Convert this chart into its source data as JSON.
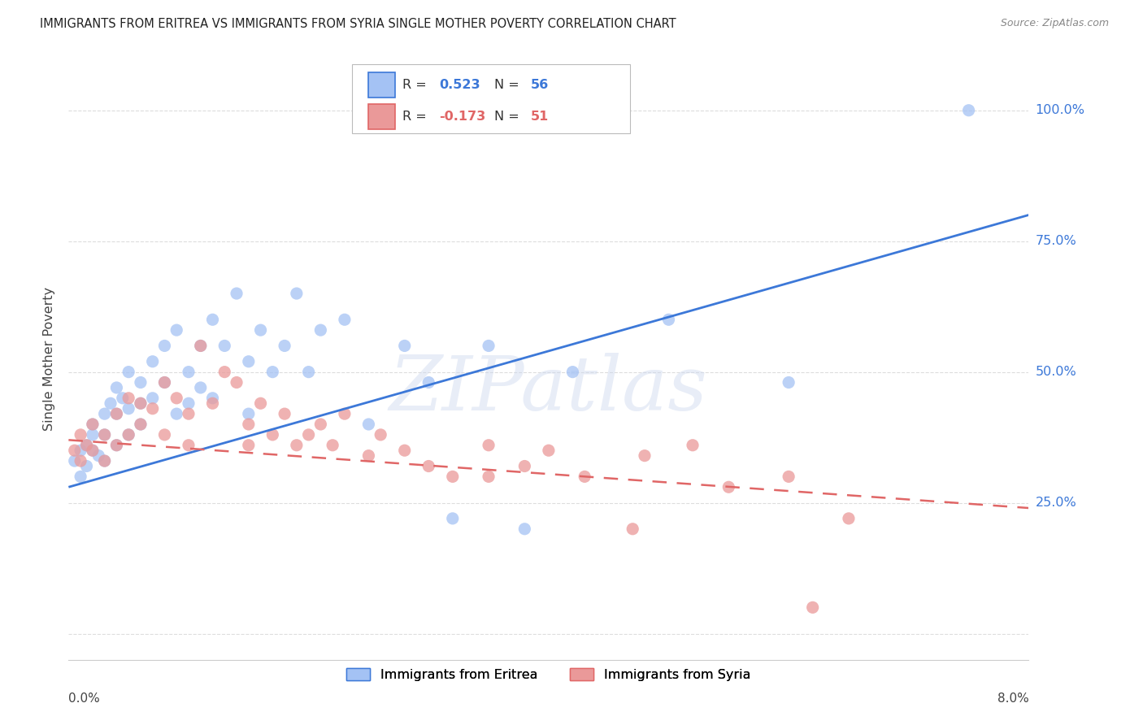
{
  "title": "IMMIGRANTS FROM ERITREA VS IMMIGRANTS FROM SYRIA SINGLE MOTHER POVERTY CORRELATION CHART",
  "source": "Source: ZipAtlas.com",
  "ylabel": "Single Mother Poverty",
  "yticks": [
    0.0,
    0.25,
    0.5,
    0.75,
    1.0
  ],
  "ytick_labels": [
    "",
    "25.0%",
    "50.0%",
    "75.0%",
    "100.0%"
  ],
  "xmin": 0.0,
  "xmax": 0.08,
  "ymin": -0.05,
  "ymax": 1.1,
  "eritrea_R": 0.523,
  "eritrea_N": 56,
  "syria_R": -0.173,
  "syria_N": 51,
  "eritrea_color": "#a4c2f4",
  "syria_color": "#ea9999",
  "eritrea_line_color": "#3c78d8",
  "syria_line_color": "#e06666",
  "legend_label_eritrea": "Immigrants from Eritrea",
  "legend_label_syria": "Immigrants from Syria",
  "eritrea_scatter_x": [
    0.0005,
    0.001,
    0.001,
    0.0015,
    0.0015,
    0.002,
    0.002,
    0.002,
    0.0025,
    0.003,
    0.003,
    0.003,
    0.0035,
    0.004,
    0.004,
    0.004,
    0.0045,
    0.005,
    0.005,
    0.005,
    0.006,
    0.006,
    0.006,
    0.007,
    0.007,
    0.008,
    0.008,
    0.009,
    0.009,
    0.01,
    0.01,
    0.011,
    0.011,
    0.012,
    0.012,
    0.013,
    0.014,
    0.015,
    0.015,
    0.016,
    0.017,
    0.018,
    0.019,
    0.02,
    0.021,
    0.023,
    0.025,
    0.028,
    0.03,
    0.032,
    0.035,
    0.038,
    0.042,
    0.05,
    0.06,
    0.075
  ],
  "eritrea_scatter_y": [
    0.33,
    0.35,
    0.3,
    0.36,
    0.32,
    0.4,
    0.35,
    0.38,
    0.34,
    0.42,
    0.38,
    0.33,
    0.44,
    0.47,
    0.42,
    0.36,
    0.45,
    0.5,
    0.43,
    0.38,
    0.48,
    0.44,
    0.4,
    0.52,
    0.45,
    0.55,
    0.48,
    0.58,
    0.42,
    0.5,
    0.44,
    0.55,
    0.47,
    0.6,
    0.45,
    0.55,
    0.65,
    0.52,
    0.42,
    0.58,
    0.5,
    0.55,
    0.65,
    0.5,
    0.58,
    0.6,
    0.4,
    0.55,
    0.48,
    0.22,
    0.55,
    0.2,
    0.5,
    0.6,
    0.48,
    1.0
  ],
  "syria_scatter_x": [
    0.0005,
    0.001,
    0.001,
    0.0015,
    0.002,
    0.002,
    0.003,
    0.003,
    0.004,
    0.004,
    0.005,
    0.005,
    0.006,
    0.006,
    0.007,
    0.008,
    0.008,
    0.009,
    0.01,
    0.01,
    0.011,
    0.012,
    0.013,
    0.014,
    0.015,
    0.015,
    0.016,
    0.017,
    0.018,
    0.019,
    0.02,
    0.021,
    0.022,
    0.023,
    0.025,
    0.026,
    0.028,
    0.03,
    0.032,
    0.035,
    0.038,
    0.04,
    0.043,
    0.048,
    0.052,
    0.055,
    0.06,
    0.065,
    0.047,
    0.035,
    0.062
  ],
  "syria_scatter_y": [
    0.35,
    0.33,
    0.38,
    0.36,
    0.4,
    0.35,
    0.38,
    0.33,
    0.42,
    0.36,
    0.45,
    0.38,
    0.44,
    0.4,
    0.43,
    0.48,
    0.38,
    0.45,
    0.42,
    0.36,
    0.55,
    0.44,
    0.5,
    0.48,
    0.4,
    0.36,
    0.44,
    0.38,
    0.42,
    0.36,
    0.38,
    0.4,
    0.36,
    0.42,
    0.34,
    0.38,
    0.35,
    0.32,
    0.3,
    0.36,
    0.32,
    0.35,
    0.3,
    0.34,
    0.36,
    0.28,
    0.3,
    0.22,
    0.2,
    0.3,
    0.05
  ],
  "eritrea_line_x": [
    0.0,
    0.08
  ],
  "eritrea_line_y": [
    0.28,
    0.8
  ],
  "syria_line_x": [
    0.0,
    0.08
  ],
  "syria_line_y": [
    0.37,
    0.24
  ],
  "watermark": "ZIPatlas",
  "background_color": "#ffffff",
  "grid_color": "#dddddd",
  "scatter_size": 120
}
